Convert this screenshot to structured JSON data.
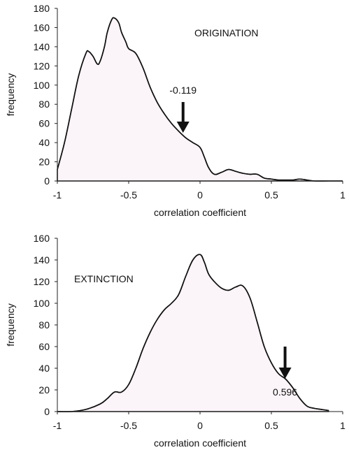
{
  "chart_data": [
    {
      "type": "area",
      "panel_label": "ORIGINATION",
      "xlabel": "correlation coefficient",
      "ylabel": "frequency",
      "xlim": [
        -1,
        1
      ],
      "ylim": [
        0,
        180
      ],
      "x_ticks": [
        -1,
        -0.5,
        0,
        0.5,
        1
      ],
      "x_tick_labels": [
        "-1",
        "-0.5",
        "0",
        "0.5",
        "1"
      ],
      "y_ticks": [
        0,
        20,
        40,
        60,
        80,
        100,
        120,
        140,
        160,
        180
      ],
      "y_tick_labels": [
        "0",
        "20",
        "40",
        "60",
        "80",
        "100",
        "120",
        "140",
        "160",
        "180"
      ],
      "x": [
        -1,
        -0.95,
        -0.9,
        -0.85,
        -0.8,
        -0.78,
        -0.75,
        -0.72,
        -0.7,
        -0.67,
        -0.65,
        -0.62,
        -0.6,
        -0.57,
        -0.55,
        -0.52,
        -0.5,
        -0.45,
        -0.4,
        -0.35,
        -0.3,
        -0.25,
        -0.2,
        -0.15,
        -0.1,
        -0.05,
        0,
        0.03,
        0.06,
        0.1,
        0.15,
        0.2,
        0.25,
        0.3,
        0.35,
        0.4,
        0.45,
        0.5,
        0.55,
        0.6,
        0.65,
        0.7,
        0.75,
        0.8,
        0.9,
        1
      ],
      "y": [
        12,
        40,
        75,
        110,
        133,
        135,
        130,
        122,
        125,
        140,
        155,
        168,
        170,
        165,
        155,
        145,
        138,
        133,
        118,
        98,
        82,
        70,
        60,
        52,
        45,
        40,
        35,
        25,
        14,
        7,
        9,
        12,
        10,
        8,
        7,
        7,
        3,
        2,
        1,
        1,
        1,
        2,
        1,
        0,
        0,
        0
      ],
      "annotation": {
        "label": "-0.119",
        "x": -0.119
      }
    },
    {
      "type": "area",
      "panel_label": "EXTINCTION",
      "xlabel": "correlation coefficient",
      "ylabel": "frequency",
      "xlim": [
        -1,
        1
      ],
      "ylim": [
        0,
        160
      ],
      "x_ticks": [
        -1,
        -0.5,
        0,
        0.5,
        1
      ],
      "x_tick_labels": [
        "-1",
        "-0.5",
        "0",
        "0.5",
        "1"
      ],
      "y_ticks": [
        0,
        20,
        40,
        60,
        80,
        100,
        120,
        140,
        160
      ],
      "y_tick_labels": [
        "0",
        "20",
        "40",
        "60",
        "80",
        "100",
        "120",
        "140",
        "160"
      ],
      "x": [
        -1,
        -0.9,
        -0.8,
        -0.7,
        -0.65,
        -0.6,
        -0.55,
        -0.5,
        -0.45,
        -0.4,
        -0.35,
        -0.3,
        -0.25,
        -0.2,
        -0.15,
        -0.1,
        -0.05,
        0,
        0.03,
        0.06,
        0.1,
        0.15,
        0.2,
        0.25,
        0.3,
        0.35,
        0.4,
        0.45,
        0.5,
        0.55,
        0.6,
        0.65,
        0.7,
        0.75,
        0.8,
        0.85,
        0.9
      ],
      "y": [
        0,
        0,
        2,
        7,
        12,
        18,
        18,
        25,
        40,
        58,
        73,
        85,
        94,
        100,
        108,
        125,
        140,
        145,
        138,
        127,
        120,
        114,
        112,
        115,
        116,
        105,
        83,
        60,
        45,
        35,
        30,
        22,
        12,
        5,
        3,
        2,
        1
      ],
      "annotation": {
        "label": "0.596",
        "x": 0.596
      }
    }
  ]
}
